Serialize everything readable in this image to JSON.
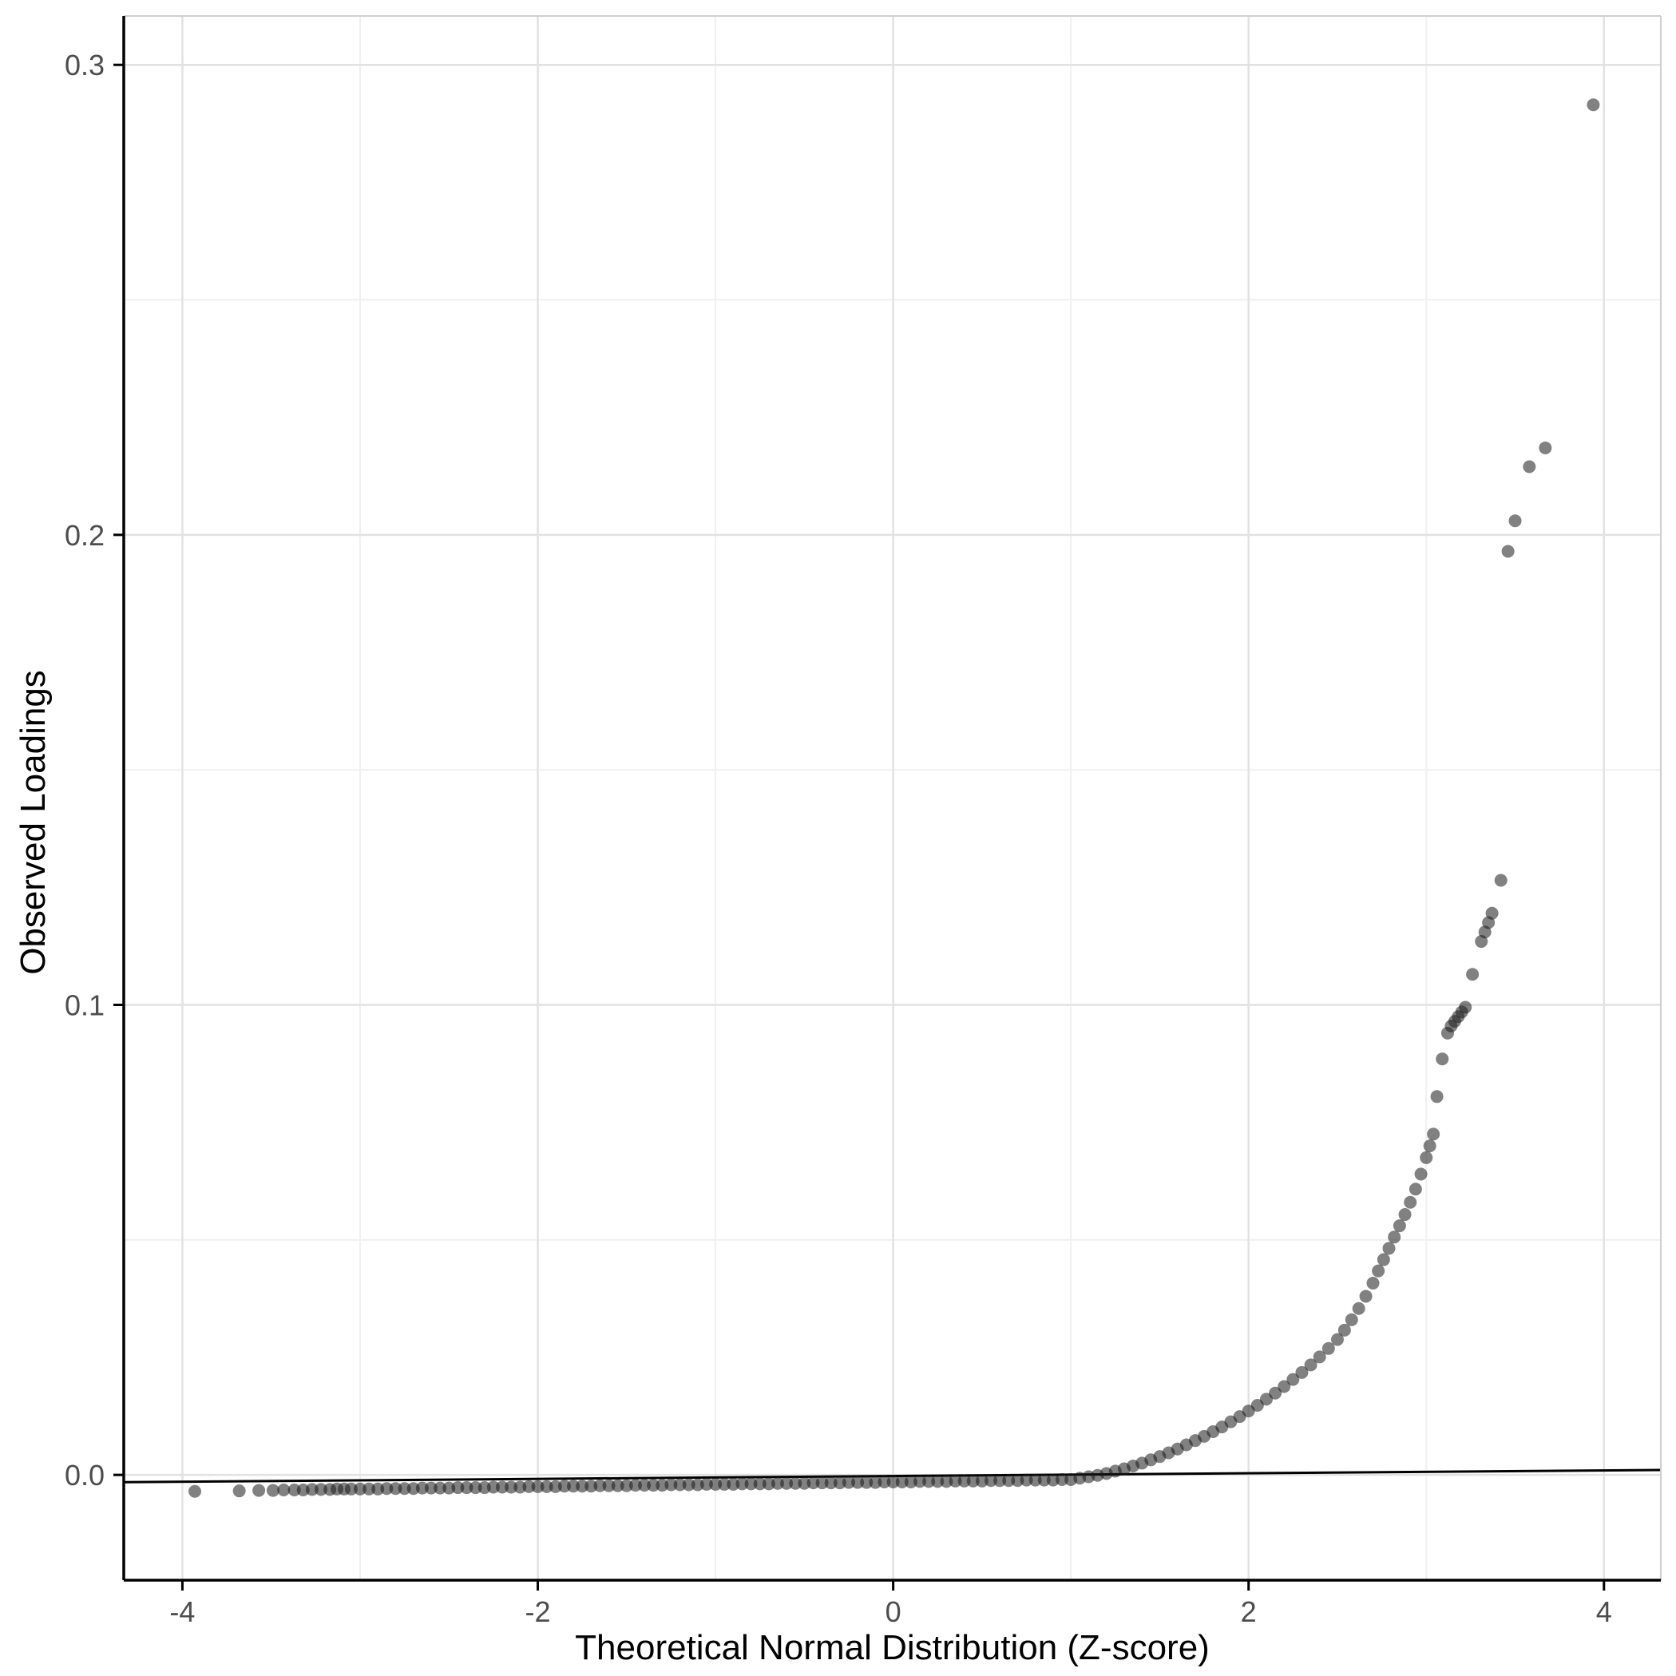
{
  "chart_data": {
    "type": "scatter",
    "title": "",
    "xlabel": "Theoretical Normal Distribution (Z-score)",
    "ylabel": "Observed Loadings",
    "xlim": [
      -4.33,
      4.32
    ],
    "ylim": [
      -0.0224,
      0.3104
    ],
    "x_ticks": [
      -4,
      -2,
      0,
      2,
      4
    ],
    "x_tick_labels": [
      "-4",
      "-2",
      "0",
      "2",
      "4"
    ],
    "y_ticks": [
      0.0,
      0.1,
      0.2,
      0.3
    ],
    "y_tick_labels": [
      "0.0",
      "0.1",
      "0.2",
      "0.3"
    ],
    "x_minor_ticks": [
      -3,
      -1,
      1,
      3
    ],
    "y_minor_ticks": [
      0.05,
      0.15,
      0.25
    ],
    "grid": true,
    "legend": false,
    "point_color": "#1a1a1a",
    "point_opacity": 0.55,
    "point_radius": 8,
    "colors": {
      "panel_bg": "#ffffff",
      "grid_major": "#e2e2e2",
      "grid_minor": "#f0f0f0",
      "panel_border": "#cfcfcf",
      "axis_line": "#000000",
      "tick_label": "#4d4d4d"
    },
    "reference_line": {
      "x1": -4.33,
      "y1": -0.00155,
      "x2": 4.32,
      "y2": 0.00105,
      "color": "#000000"
    },
    "points": [
      [
        -3.93,
        -0.0035
      ],
      [
        -3.68,
        -0.0034
      ],
      [
        -3.57,
        -0.0033
      ],
      [
        -3.49,
        -0.0033
      ],
      [
        -3.43,
        -0.0032
      ],
      [
        -3.37,
        -0.0032
      ],
      [
        -3.32,
        -0.0032
      ],
      [
        -3.27,
        -0.0031
      ],
      [
        -3.22,
        -0.0031
      ],
      [
        -3.17,
        -0.0031
      ],
      [
        -3.13,
        -0.003
      ],
      [
        -3.09,
        -0.003
      ],
      [
        -3.05,
        -0.003
      ],
      [
        -3.0,
        -0.003
      ],
      [
        -2.95,
        -0.003
      ],
      [
        -2.9,
        -0.003
      ],
      [
        -2.85,
        -0.0029
      ],
      [
        -2.8,
        -0.0029
      ],
      [
        -2.75,
        -0.0029
      ],
      [
        -2.7,
        -0.0029
      ],
      [
        -2.65,
        -0.0028
      ],
      [
        -2.6,
        -0.0028
      ],
      [
        -2.55,
        -0.0028
      ],
      [
        -2.5,
        -0.0028
      ],
      [
        -2.45,
        -0.0027
      ],
      [
        -2.4,
        -0.0027
      ],
      [
        -2.35,
        -0.0027
      ],
      [
        -2.3,
        -0.0027
      ],
      [
        -2.25,
        -0.0026
      ],
      [
        -2.2,
        -0.0026
      ],
      [
        -2.15,
        -0.0026
      ],
      [
        -2.1,
        -0.0026
      ],
      [
        -2.05,
        -0.0025
      ],
      [
        -2.0,
        -0.0025
      ],
      [
        -1.95,
        -0.0025
      ],
      [
        -1.9,
        -0.0025
      ],
      [
        -1.85,
        -0.0024
      ],
      [
        -1.8,
        -0.0024
      ],
      [
        -1.75,
        -0.0024
      ],
      [
        -1.7,
        -0.0024
      ],
      [
        -1.65,
        -0.0023
      ],
      [
        -1.6,
        -0.0023
      ],
      [
        -1.55,
        -0.0023
      ],
      [
        -1.5,
        -0.0023
      ],
      [
        -1.45,
        -0.0022
      ],
      [
        -1.4,
        -0.0022
      ],
      [
        -1.35,
        -0.0022
      ],
      [
        -1.3,
        -0.0022
      ],
      [
        -1.25,
        -0.0021
      ],
      [
        -1.2,
        -0.0021
      ],
      [
        -1.15,
        -0.0021
      ],
      [
        -1.1,
        -0.0021
      ],
      [
        -1.05,
        -0.002
      ],
      [
        -1.0,
        -0.002
      ],
      [
        -0.95,
        -0.002
      ],
      [
        -0.9,
        -0.002
      ],
      [
        -0.85,
        -0.0019
      ],
      [
        -0.8,
        -0.0019
      ],
      [
        -0.75,
        -0.0019
      ],
      [
        -0.7,
        -0.0019
      ],
      [
        -0.65,
        -0.0018
      ],
      [
        -0.6,
        -0.0018
      ],
      [
        -0.55,
        -0.0018
      ],
      [
        -0.5,
        -0.0018
      ],
      [
        -0.45,
        -0.0017
      ],
      [
        -0.4,
        -0.0017
      ],
      [
        -0.35,
        -0.0017
      ],
      [
        -0.3,
        -0.0017
      ],
      [
        -0.25,
        -0.0016
      ],
      [
        -0.2,
        -0.0016
      ],
      [
        -0.15,
        -0.0016
      ],
      [
        -0.1,
        -0.0016
      ],
      [
        -0.05,
        -0.0015
      ],
      [
        0.0,
        -0.0015
      ],
      [
        0.05,
        -0.0015
      ],
      [
        0.1,
        -0.0015
      ],
      [
        0.15,
        -0.0014
      ],
      [
        0.2,
        -0.0014
      ],
      [
        0.25,
        -0.0014
      ],
      [
        0.3,
        -0.0014
      ],
      [
        0.35,
        -0.0013
      ],
      [
        0.4,
        -0.0013
      ],
      [
        0.45,
        -0.0013
      ],
      [
        0.5,
        -0.0013
      ],
      [
        0.55,
        -0.0012
      ],
      [
        0.6,
        -0.0012
      ],
      [
        0.65,
        -0.0012
      ],
      [
        0.7,
        -0.0012
      ],
      [
        0.75,
        -0.0011
      ],
      [
        0.8,
        -0.0011
      ],
      [
        0.85,
        -0.0011
      ],
      [
        0.9,
        -0.0011
      ],
      [
        0.95,
        -0.001
      ],
      [
        1.0,
        -0.001
      ],
      [
        1.05,
        -0.0007
      ],
      [
        1.1,
        -0.0004
      ],
      [
        1.15,
        -0.0001
      ],
      [
        1.2,
        0.0003
      ],
      [
        1.25,
        0.0008
      ],
      [
        1.3,
        0.0013
      ],
      [
        1.35,
        0.0019
      ],
      [
        1.4,
        0.0025
      ],
      [
        1.45,
        0.0032
      ],
      [
        1.5,
        0.0039
      ],
      [
        1.55,
        0.0047
      ],
      [
        1.6,
        0.0055
      ],
      [
        1.65,
        0.0064
      ],
      [
        1.7,
        0.0073
      ],
      [
        1.75,
        0.0082
      ],
      [
        1.8,
        0.0092
      ],
      [
        1.85,
        0.0102
      ],
      [
        1.9,
        0.0113
      ],
      [
        1.95,
        0.0124
      ],
      [
        2.0,
        0.0136
      ],
      [
        2.05,
        0.0148
      ],
      [
        2.1,
        0.0161
      ],
      [
        2.15,
        0.0174
      ],
      [
        2.2,
        0.0188
      ],
      [
        2.25,
        0.0203
      ],
      [
        2.3,
        0.0218
      ],
      [
        2.35,
        0.0234
      ],
      [
        2.4,
        0.0251
      ],
      [
        2.45,
        0.0269
      ],
      [
        2.5,
        0.0288
      ],
      [
        2.54,
        0.0308
      ],
      [
        2.58,
        0.033
      ],
      [
        2.62,
        0.0354
      ],
      [
        2.66,
        0.038
      ],
      [
        2.7,
        0.0408
      ],
      [
        2.73,
        0.0434
      ],
      [
        2.76,
        0.0458
      ],
      [
        2.79,
        0.0482
      ],
      [
        2.82,
        0.0506
      ],
      [
        2.85,
        0.053
      ],
      [
        2.88,
        0.0554
      ],
      [
        2.91,
        0.058
      ],
      [
        2.94,
        0.0608
      ],
      [
        2.97,
        0.064
      ],
      [
        3.0,
        0.0675
      ],
      [
        3.02,
        0.07
      ],
      [
        3.04,
        0.0725
      ],
      [
        3.06,
        0.0805
      ],
      [
        3.09,
        0.0885
      ],
      [
        3.12,
        0.094
      ],
      [
        3.14,
        0.0955
      ],
      [
        3.16,
        0.0965
      ],
      [
        3.18,
        0.0975
      ],
      [
        3.2,
        0.0985
      ],
      [
        3.22,
        0.0995
      ],
      [
        3.26,
        0.1065
      ],
      [
        3.31,
        0.1135
      ],
      [
        3.33,
        0.1155
      ],
      [
        3.35,
        0.1175
      ],
      [
        3.37,
        0.1195
      ],
      [
        3.42,
        0.1265
      ],
      [
        3.46,
        0.1965
      ],
      [
        3.5,
        0.203
      ],
      [
        3.58,
        0.2145
      ],
      [
        3.67,
        0.2185
      ],
      [
        3.94,
        0.2915
      ]
    ]
  }
}
